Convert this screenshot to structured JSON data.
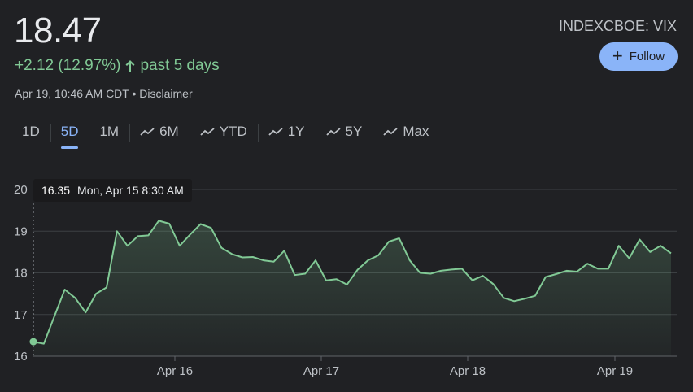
{
  "quote": {
    "price": "18.47",
    "change": "+2.12 (12.97%)",
    "period": "past 5 days",
    "timestamp": "Apr 19, 10:46 AM CDT • Disclaimer",
    "ticker": "INDEXCBOE: VIX"
  },
  "follow_button": {
    "label": "Follow",
    "icon": "plus-icon"
  },
  "tabs": [
    {
      "label": "1D",
      "icon": ""
    },
    {
      "label": "5D",
      "icon": ""
    },
    {
      "label": "1M",
      "icon": ""
    },
    {
      "label": "6M",
      "icon": "trend-icon"
    },
    {
      "label": "YTD",
      "icon": "trend-icon"
    },
    {
      "label": "1Y",
      "icon": "trend-icon"
    },
    {
      "label": "5Y",
      "icon": "trend-icon"
    },
    {
      "label": "Max",
      "icon": "trend-icon"
    }
  ],
  "active_tab": "5D",
  "tooltip": {
    "value": "16.35",
    "time": "Mon, Apr 15 8:30 AM"
  },
  "colors": {
    "background": "#202124",
    "line": "#81c995",
    "accent": "#8ab4f8",
    "grid": "#3c4043",
    "text": "#bdc1c6"
  },
  "chart_data": {
    "type": "area",
    "title": "",
    "xlabel": "",
    "ylabel": "",
    "ylim": [
      16,
      20
    ],
    "yticks": [
      "16",
      "17",
      "18",
      "19",
      "20"
    ],
    "xticks": [
      "Apr 16",
      "Apr 17",
      "Apr 18",
      "Apr 19"
    ],
    "grid": true,
    "series": [
      {
        "values": [
          16.35,
          16.3,
          16.95,
          17.6,
          17.4,
          17.05,
          17.5,
          17.65,
          19.0,
          18.65,
          18.88,
          18.9,
          19.25,
          19.18,
          18.65,
          18.92,
          19.17,
          19.08,
          18.6,
          18.45,
          18.37,
          18.38,
          18.3,
          18.27,
          18.53,
          17.95,
          17.98,
          18.3,
          17.82,
          17.85,
          17.72,
          18.07,
          18.3,
          18.42,
          18.75,
          18.83,
          18.3,
          18.0,
          17.98,
          18.05,
          18.08,
          18.1,
          17.82,
          17.93,
          17.73,
          17.4,
          17.32,
          17.38,
          17.45,
          17.9,
          17.97,
          18.05,
          18.03,
          18.22,
          18.1,
          18.1,
          18.65,
          18.35,
          18.8,
          18.5,
          18.65,
          18.47
        ]
      }
    ]
  }
}
